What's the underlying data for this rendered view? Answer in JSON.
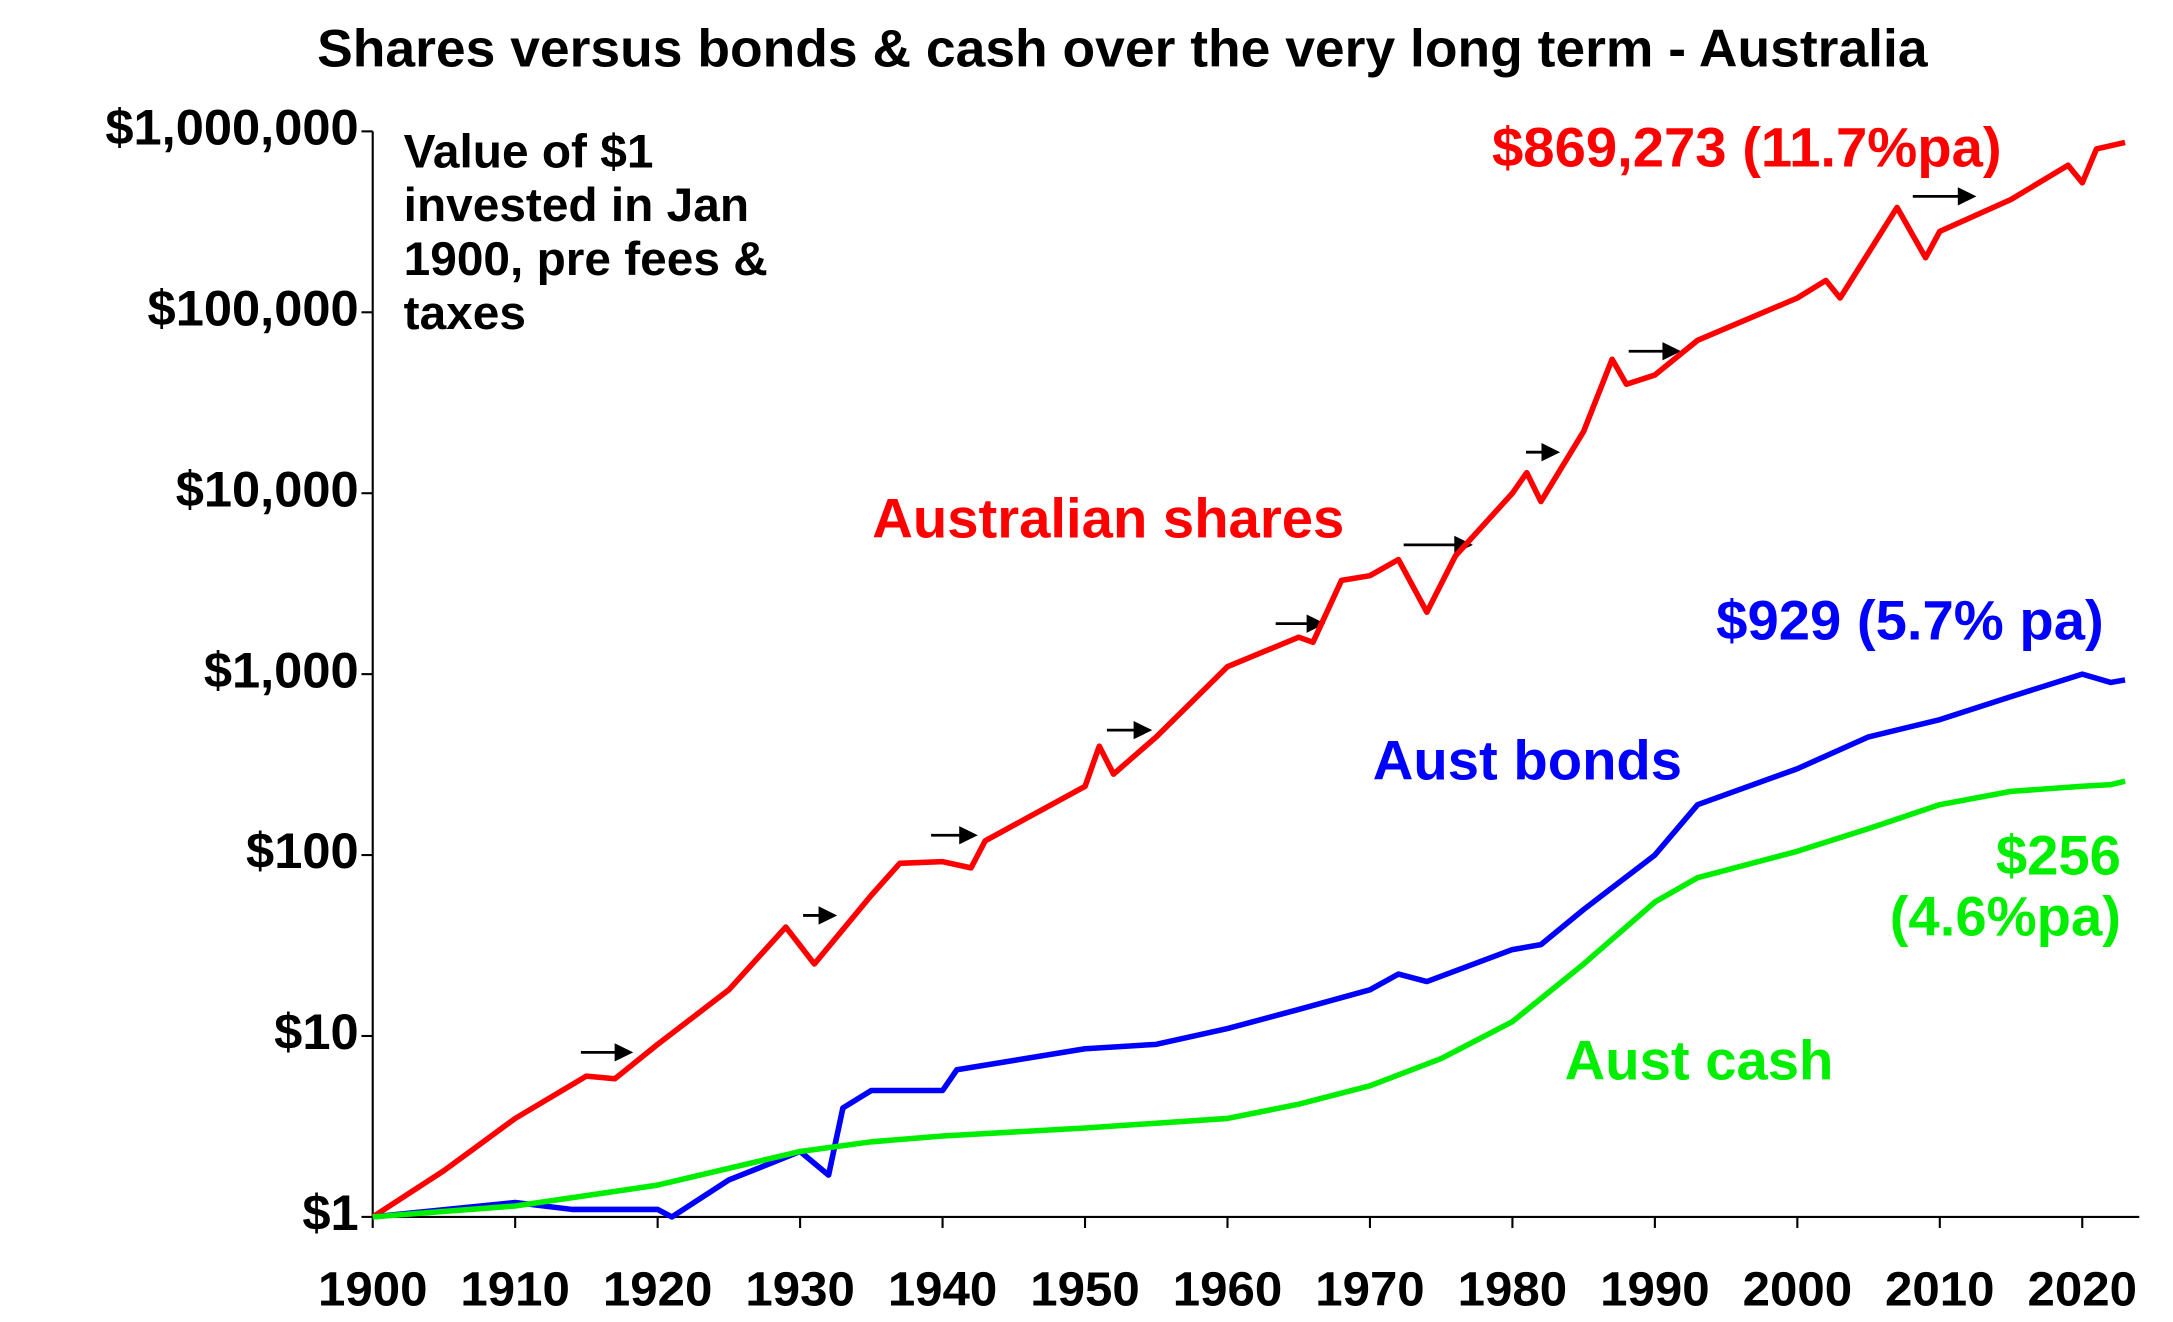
{
  "chart_data": {
    "type": "line",
    "title": "Shares versus bonds & cash over the very long term - Australia",
    "note": [
      "Value of $1",
      "invested in Jan",
      "1900, pre fees &",
      "taxes"
    ],
    "log_y": true,
    "grid": false,
    "xlim": [
      1900,
      2024
    ],
    "xticks": [
      1900,
      1910,
      1920,
      1930,
      1940,
      1950,
      1960,
      1970,
      1980,
      1990,
      2000,
      2010,
      2020
    ],
    "ylim": [
      1,
      1000000
    ],
    "yticks": [
      {
        "value": 1,
        "label": "$1"
      },
      {
        "value": 10,
        "label": "$10"
      },
      {
        "value": 100,
        "label": "$100"
      },
      {
        "value": 1000,
        "label": "$1,000"
      },
      {
        "value": 10000,
        "label": "$10,000"
      },
      {
        "value": 100000,
        "label": "$100,000"
      },
      {
        "value": 1000000,
        "label": "$1,000,000"
      }
    ],
    "series": [
      {
        "name": "Australian shares",
        "color": "#ff0000",
        "end_label": [
          "$869,273 (11.7%pa)"
        ],
        "x": [
          1900,
          1905,
          1910,
          1915,
          1917,
          1920,
          1925,
          1929,
          1931,
          1935,
          1937,
          1940,
          1942,
          1943,
          1950,
          1951,
          1952,
          1955,
          1960,
          1965,
          1966,
          1968,
          1970,
          1972,
          1974,
          1976,
          1980,
          1981,
          1982,
          1985,
          1987,
          1988,
          1990,
          1993,
          2000,
          2002,
          2003,
          2007,
          2009,
          2010,
          2015,
          2019,
          2020,
          2021,
          2023
        ],
        "values": [
          1,
          1.8,
          3.5,
          6,
          5.8,
          9,
          18,
          40,
          25,
          60,
          90,
          92,
          85,
          120,
          240,
          400,
          280,
          450,
          1100,
          1600,
          1500,
          3300,
          3500,
          4300,
          2200,
          4500,
          10000,
          13000,
          9000,
          22000,
          55000,
          40000,
          45000,
          70000,
          120000,
          150000,
          120000,
          380000,
          200000,
          280000,
          420000,
          650000,
          520000,
          800000,
          869273
        ]
      },
      {
        "name": "Aust bonds",
        "color": "#0000ff",
        "end_label": [
          "$929 (5.7% pa)"
        ],
        "x": [
          1900,
          1910,
          1914,
          1920,
          1921,
          1925,
          1930,
          1932,
          1933,
          1935,
          1940,
          1941,
          1950,
          1955,
          1960,
          1965,
          1970,
          1972,
          1974,
          1980,
          1982,
          1985,
          1990,
          1993,
          2000,
          2005,
          2010,
          2015,
          2020,
          2022,
          2023
        ],
        "values": [
          1,
          1.2,
          1.1,
          1.1,
          1.0,
          1.6,
          2.3,
          1.7,
          4,
          5,
          5,
          6.5,
          8.5,
          9,
          11,
          14,
          18,
          22,
          20,
          30,
          32,
          50,
          100,
          190,
          300,
          450,
          560,
          750,
          1000,
          900,
          929
        ]
      },
      {
        "name": "Aust cash",
        "color": "#00ee00",
        "end_label": [
          "$256",
          "(4.6%pa)"
        ],
        "x": [
          1900,
          1910,
          1920,
          1930,
          1935,
          1940,
          1950,
          1960,
          1965,
          1970,
          1975,
          1980,
          1985,
          1990,
          1993,
          2000,
          2005,
          2010,
          2015,
          2020,
          2022,
          2023
        ],
        "values": [
          1,
          1.15,
          1.5,
          2.3,
          2.6,
          2.8,
          3.1,
          3.5,
          4.2,
          5.3,
          7.5,
          12,
          25,
          55,
          75,
          105,
          140,
          190,
          225,
          240,
          245,
          256
        ]
      }
    ]
  }
}
